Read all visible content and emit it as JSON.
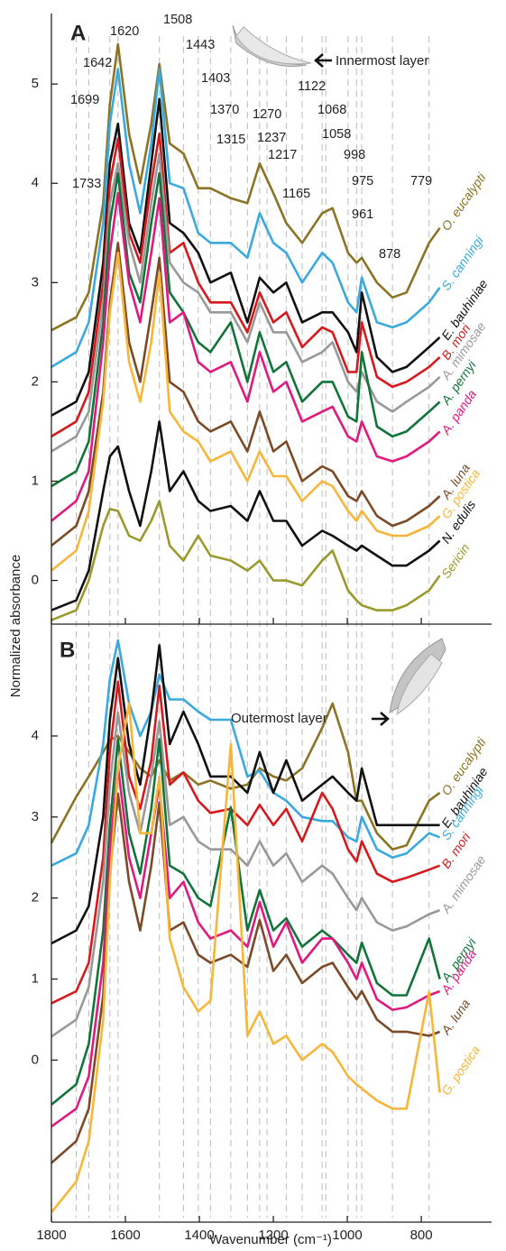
{
  "chart_data": [
    {
      "type": "line",
      "panel": "A",
      "annotation": "Innermost layer",
      "ylabel": "Normalized absorbance",
      "xlim": [
        1800,
        610
      ],
      "ylim": [
        -0.44,
        5.71
      ],
      "xticks": [
        1800,
        1600,
        1400,
        1200,
        1000,
        800
      ],
      "yticks": [
        0,
        1,
        2,
        3,
        4,
        5
      ],
      "reference_lines": [
        1733,
        1699,
        1642,
        1620,
        1508,
        1443,
        1403,
        1370,
        1315,
        1270,
        1237,
        1217,
        1165,
        1122,
        1068,
        1058,
        998,
        975,
        961,
        878,
        779
      ],
      "x": [
        1800,
        1733,
        1699,
        1660,
        1642,
        1620,
        1590,
        1560,
        1530,
        1508,
        1480,
        1443,
        1403,
        1370,
        1315,
        1270,
        1237,
        1200,
        1165,
        1122,
        1068,
        1040,
        998,
        975,
        961,
        920,
        878,
        840,
        779,
        750
      ],
      "series": [
        {
          "name": "O. eucalypti",
          "color": "#8c7424",
          "values": [
            2.52,
            2.65,
            2.9,
            3.8,
            4.8,
            5.4,
            4.5,
            4.0,
            4.6,
            5.2,
            4.4,
            4.3,
            3.95,
            3.95,
            3.85,
            3.8,
            4.2,
            3.9,
            3.6,
            3.4,
            3.7,
            3.75,
            3.3,
            3.2,
            3.25,
            3.0,
            2.85,
            2.9,
            3.4,
            3.55
          ]
        },
        {
          "name": "S. canningi",
          "color": "#3aa9de",
          "values": [
            2.15,
            2.3,
            2.6,
            3.6,
            4.6,
            5.15,
            4.2,
            3.7,
            4.4,
            5.15,
            4.0,
            3.95,
            3.5,
            3.4,
            3.4,
            3.25,
            3.7,
            3.4,
            3.3,
            3.0,
            3.3,
            3.2,
            2.8,
            2.7,
            3.05,
            2.6,
            2.55,
            2.6,
            2.8,
            2.95
          ]
        },
        {
          "name": "E. bauhiniae",
          "color": "#111111",
          "values": [
            1.66,
            1.8,
            2.1,
            3.2,
            4.2,
            4.6,
            3.6,
            3.3,
            4.2,
            4.85,
            3.6,
            3.5,
            3.3,
            3.0,
            3.1,
            2.6,
            3.05,
            2.9,
            3.0,
            2.6,
            2.7,
            2.7,
            2.5,
            2.3,
            2.9,
            2.25,
            2.1,
            2.15,
            2.35,
            2.45
          ]
        },
        {
          "name": "B. mori",
          "color": "#d7191c",
          "values": [
            1.45,
            1.6,
            1.9,
            3.0,
            4.0,
            4.45,
            3.5,
            3.2,
            4.0,
            4.5,
            3.3,
            3.4,
            3.0,
            2.8,
            2.8,
            2.5,
            2.9,
            2.6,
            2.7,
            2.35,
            2.55,
            2.5,
            2.1,
            2.1,
            2.6,
            2.05,
            1.95,
            2.0,
            2.15,
            2.25
          ]
        },
        {
          "name": "A. mimosae",
          "color": "#999999",
          "values": [
            1.3,
            1.45,
            1.7,
            2.8,
            3.8,
            4.2,
            3.4,
            3.0,
            3.8,
            4.3,
            3.2,
            3.0,
            2.9,
            2.7,
            2.7,
            2.4,
            2.8,
            2.5,
            2.5,
            2.2,
            2.3,
            2.4,
            2.0,
            1.9,
            2.1,
            1.8,
            1.7,
            1.8,
            1.95,
            2.05
          ]
        },
        {
          "name": "A. pernyi",
          "color": "#13743a",
          "values": [
            0.95,
            1.1,
            1.4,
            2.6,
            3.6,
            4.1,
            3.1,
            2.8,
            3.6,
            4.1,
            2.9,
            2.7,
            2.4,
            2.3,
            2.6,
            2.0,
            2.5,
            2.1,
            2.2,
            1.8,
            2.0,
            2.0,
            1.65,
            1.6,
            2.3,
            1.55,
            1.45,
            1.5,
            1.7,
            1.8
          ]
        },
        {
          "name": "A. panda",
          "color": "#e0197f",
          "values": [
            0.6,
            0.8,
            1.1,
            2.4,
            3.3,
            3.9,
            3.0,
            2.6,
            3.3,
            3.85,
            2.6,
            2.7,
            2.2,
            2.1,
            2.2,
            1.8,
            2.3,
            1.9,
            2.0,
            1.6,
            1.7,
            1.75,
            1.45,
            1.4,
            1.6,
            1.25,
            1.2,
            1.25,
            1.4,
            1.5
          ]
        },
        {
          "name": "A. luna",
          "color": "#7b4a26",
          "values": [
            0.35,
            0.55,
            0.9,
            1.9,
            2.8,
            3.4,
            2.4,
            2.0,
            2.7,
            3.25,
            2.0,
            1.9,
            1.6,
            1.5,
            1.6,
            1.3,
            1.7,
            1.3,
            1.4,
            1.0,
            1.15,
            1.1,
            0.85,
            0.8,
            0.9,
            0.65,
            0.55,
            0.6,
            0.75,
            0.85
          ]
        },
        {
          "name": "G. postica",
          "color": "#f7b63a",
          "values": [
            0.1,
            0.3,
            0.7,
            1.8,
            2.7,
            3.3,
            2.2,
            1.8,
            2.4,
            3.1,
            1.7,
            1.5,
            1.4,
            1.2,
            1.3,
            1.0,
            1.3,
            1.05,
            1.05,
            0.8,
            1.0,
            0.95,
            0.7,
            0.6,
            0.7,
            0.5,
            0.45,
            0.45,
            0.55,
            0.65
          ]
        },
        {
          "name": "N. edulis",
          "color": "#111111",
          "values": [
            -0.3,
            -0.2,
            0.1,
            0.9,
            1.25,
            1.35,
            0.9,
            0.55,
            1.1,
            1.6,
            0.9,
            1.1,
            0.8,
            0.7,
            0.75,
            0.6,
            0.9,
            0.6,
            0.6,
            0.35,
            0.5,
            0.45,
            0.35,
            0.3,
            0.35,
            0.25,
            0.15,
            0.15,
            0.3,
            0.4
          ]
        },
        {
          "name": "Sericin",
          "color": "#9a9a2c",
          "values": [
            -0.4,
            -0.3,
            0.0,
            0.55,
            0.72,
            0.7,
            0.45,
            0.4,
            0.6,
            0.8,
            0.35,
            0.2,
            0.45,
            0.25,
            0.2,
            0.1,
            0.2,
            0.0,
            0.0,
            -0.05,
            0.2,
            0.3,
            -0.1,
            -0.2,
            -0.25,
            -0.3,
            -0.3,
            -0.25,
            -0.1,
            0.05
          ]
        }
      ]
    },
    {
      "type": "line",
      "panel": "B",
      "annotation": "Outermost layer",
      "xlabel": "Wavenumber (cm⁻¹)",
      "xlim": [
        1800,
        610
      ],
      "ylim": [
        -2,
        5.38
      ],
      "xticks": [
        1800,
        1600,
        1400,
        1200,
        1000,
        800
      ],
      "yticks": [
        0,
        1,
        2,
        3,
        4
      ],
      "x": [
        1800,
        1733,
        1699,
        1660,
        1642,
        1620,
        1590,
        1560,
        1530,
        1508,
        1480,
        1443,
        1403,
        1370,
        1315,
        1270,
        1237,
        1200,
        1165,
        1122,
        1068,
        1040,
        998,
        975,
        961,
        920,
        878,
        840,
        779,
        750
      ],
      "series": [
        {
          "name": "O. eucalypti",
          "color": "#8c7424",
          "values": [
            2.68,
            3.25,
            3.5,
            3.8,
            3.95,
            4.0,
            3.8,
            3.6,
            3.5,
            3.7,
            3.45,
            3.55,
            3.4,
            3.45,
            3.35,
            3.4,
            3.6,
            3.5,
            3.45,
            3.6,
            4.1,
            4.4,
            3.8,
            3.2,
            3.2,
            2.8,
            2.6,
            2.65,
            3.2,
            3.3
          ]
        },
        {
          "name": "S. canningi",
          "color": "#3aa9de",
          "values": [
            2.4,
            2.55,
            2.9,
            3.9,
            4.7,
            5.18,
            4.4,
            4.0,
            4.3,
            4.76,
            4.45,
            4.45,
            4.3,
            4.2,
            4.2,
            3.5,
            3.57,
            3.3,
            3.2,
            3.0,
            2.95,
            2.95,
            2.75,
            2.7,
            3.0,
            2.6,
            2.5,
            2.55,
            2.8,
            2.75
          ]
        },
        {
          "name": "E. bauhiniae",
          "color": "#111111",
          "values": [
            1.44,
            1.6,
            1.9,
            3.0,
            4.2,
            4.96,
            3.9,
            3.4,
            4.3,
            5.12,
            3.9,
            4.3,
            3.9,
            3.5,
            3.5,
            3.3,
            3.8,
            3.3,
            3.7,
            3.2,
            3.4,
            3.5,
            3.3,
            3.2,
            3.6,
            2.9,
            2.9,
            2.9,
            2.9,
            2.9
          ]
        },
        {
          "name": "B. mori",
          "color": "#d7191c",
          "values": [
            0.7,
            0.85,
            1.2,
            2.5,
            3.8,
            4.67,
            3.5,
            3.1,
            3.7,
            4.62,
            3.4,
            3.55,
            3.2,
            3.05,
            3.1,
            2.9,
            3.15,
            2.9,
            3.1,
            2.7,
            3.3,
            3.1,
            2.6,
            2.45,
            2.7,
            2.3,
            2.2,
            2.25,
            2.35,
            2.4
          ]
        },
        {
          "name": "A. mimosae",
          "color": "#999999",
          "values": [
            0.29,
            0.5,
            0.9,
            2.2,
            3.4,
            4.29,
            3.3,
            2.8,
            3.5,
            4.18,
            2.9,
            3.0,
            2.7,
            2.6,
            2.6,
            2.4,
            2.7,
            2.4,
            2.55,
            2.2,
            2.4,
            2.3,
            2.0,
            1.85,
            2.0,
            1.7,
            1.6,
            1.65,
            1.8,
            1.85
          ]
        },
        {
          "name": "A. pernyi",
          "color": "#13743a",
          "values": [
            -0.55,
            -0.3,
            0.2,
            1.6,
            2.9,
            3.96,
            2.8,
            2.3,
            3.1,
            3.96,
            2.4,
            2.3,
            2.0,
            1.9,
            3.12,
            1.6,
            2.1,
            1.6,
            1.75,
            1.4,
            1.6,
            1.5,
            1.3,
            1.2,
            1.45,
            0.95,
            0.8,
            0.8,
            1.5,
            1.0
          ]
        },
        {
          "name": "A. panda",
          "color": "#e0197f",
          "values": [
            -0.82,
            -0.6,
            -0.2,
            1.2,
            2.6,
            3.62,
            2.5,
            2.0,
            2.8,
            3.4,
            2.0,
            2.2,
            1.7,
            1.5,
            1.6,
            1.4,
            1.95,
            1.4,
            1.7,
            1.2,
            1.5,
            1.5,
            1.2,
            1.0,
            1.2,
            0.75,
            0.62,
            0.65,
            0.8,
            0.85
          ]
        },
        {
          "name": "A. luna",
          "color": "#7b4a26",
          "values": [
            -1.27,
            -1.0,
            -0.6,
            0.8,
            2.3,
            3.29,
            2.2,
            1.6,
            2.4,
            3.18,
            1.6,
            1.7,
            1.3,
            1.2,
            1.3,
            1.15,
            1.73,
            1.1,
            1.3,
            0.95,
            1.15,
            1.2,
            0.9,
            0.75,
            0.85,
            0.5,
            0.35,
            0.35,
            0.3,
            0.35
          ]
        },
        {
          "name": "G. postica",
          "color": "#f7b63a",
          "values": [
            -1.88,
            -1.5,
            -1.0,
            0.5,
            2.2,
            3.6,
            4.4,
            2.8,
            2.8,
            3.5,
            1.5,
            0.9,
            0.6,
            0.73,
            3.9,
            0.3,
            0.6,
            0.2,
            0.3,
            0.0,
            0.2,
            0.1,
            -0.2,
            -0.3,
            -0.35,
            -0.5,
            -0.6,
            -0.6,
            0.84,
            -0.4
          ]
        }
      ]
    }
  ]
}
